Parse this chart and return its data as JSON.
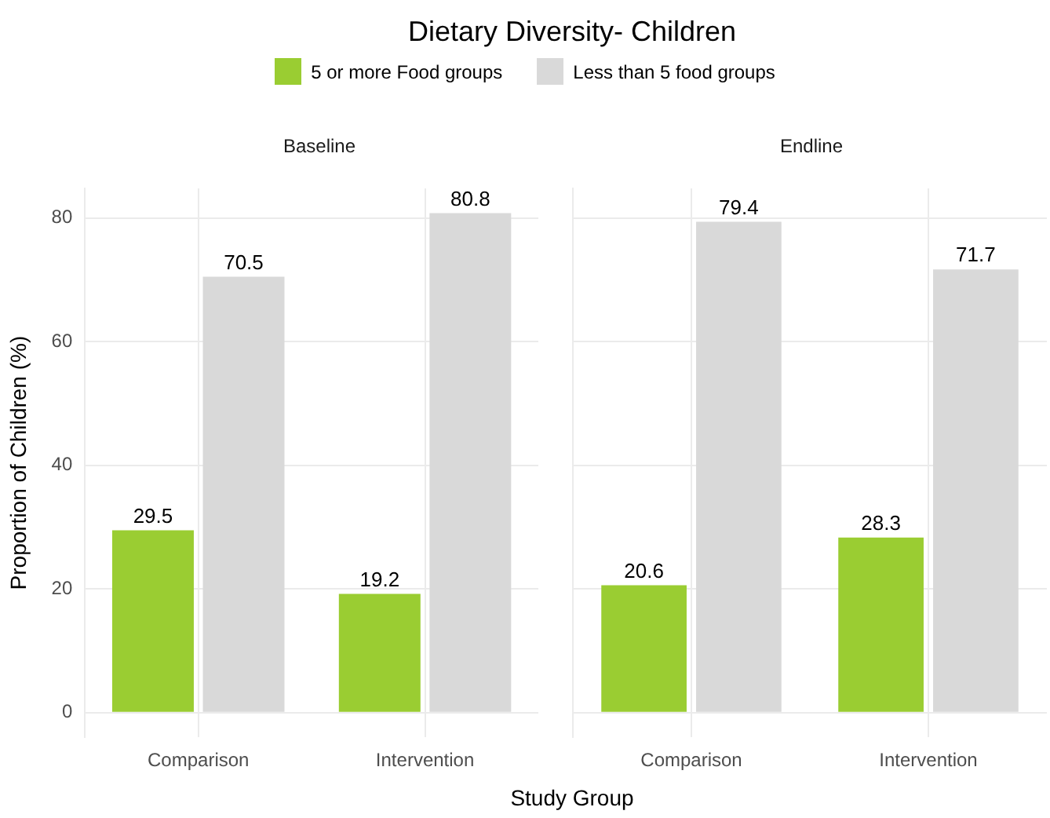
{
  "chart_data": [
    {
      "type": "bar",
      "title": "Dietary Diversity- Children",
      "subtitle": "Baseline",
      "xlabel": "Study Group",
      "ylabel": "Proportion of Children (%)",
      "categories": [
        "Comparison",
        "Intervention"
      ],
      "series": [
        {
          "name": "5 or more Food groups",
          "color": "#9acd32",
          "values": [
            29.5,
            19.2
          ]
        },
        {
          "name": "Less than 5 food groups",
          "color": "#d9d9d9",
          "values": [
            70.5,
            80.8
          ]
        }
      ],
      "ylim": [
        -4,
        84.8
      ],
      "yticks": [
        0,
        20,
        40,
        60,
        80
      ],
      "grid": true,
      "legend": "top",
      "data_labels": true
    },
    {
      "type": "bar",
      "subtitle": "Endline",
      "categories": [
        "Comparison",
        "Intervention"
      ],
      "series": [
        {
          "color": "#9acd32",
          "values": [
            20.6,
            28.3
          ]
        },
        {
          "color": "#d9d9d9",
          "values": [
            79.4,
            71.7
          ]
        }
      ],
      "ylim": [
        -4,
        84.8
      ],
      "yticks": [
        0,
        20,
        40,
        60,
        80
      ],
      "grid": true,
      "tick_labels": "x",
      "data_labels": true
    }
  ]
}
